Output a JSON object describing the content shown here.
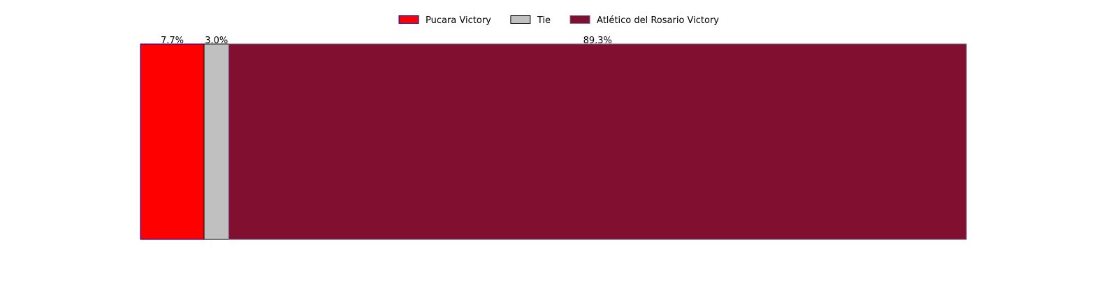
{
  "chart_data": {
    "type": "bar",
    "orientation": "horizontal-stacked",
    "categories": [
      ""
    ],
    "series": [
      {
        "name": "Pucara Victory",
        "values": [
          7.7
        ],
        "label": "7.7%",
        "color": "#ff0000",
        "edge_color": "#0000aa"
      },
      {
        "name": "Tie",
        "values": [
          3.0
        ],
        "label": "3.0%",
        "color": "#c0c0c0",
        "edge_color": "#000000"
      },
      {
        "name": "Atlético del Rosario Victory",
        "values": [
          89.3
        ],
        "label": "89.3%",
        "color": "#800f30",
        "edge_color": "#6e5a8a"
      }
    ],
    "xlim": [
      0,
      100
    ],
    "grid": false,
    "axes_visible": false,
    "legend_position": "top-center",
    "title": "",
    "xlabel": "",
    "ylabel": ""
  }
}
